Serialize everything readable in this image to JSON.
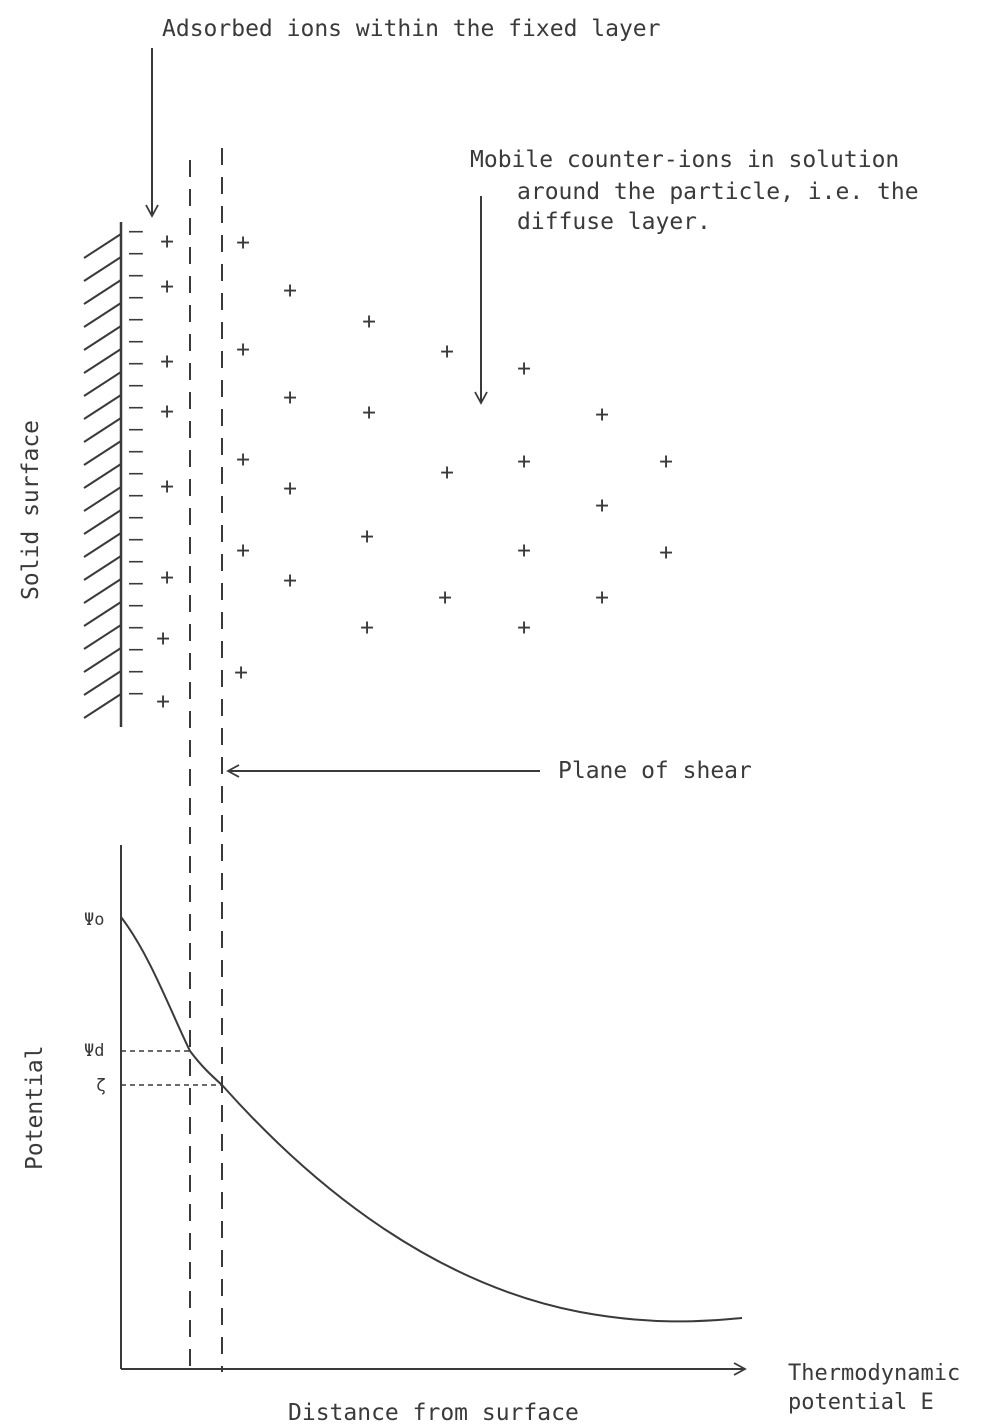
{
  "labels": {
    "adsorbed": "Adsorbed ions within the fixed layer",
    "mobile_1": "Mobile counter-ions in solution",
    "mobile_2": "around the particle, i.e. the",
    "mobile_3": "diffuse layer.",
    "solid_surface": "Solid surface",
    "plane_of_shear": "Plane of shear",
    "y_axis": "Potential",
    "x_axis": "Distance from surface",
    "thermo_1": "Thermodynamic",
    "thermo_2": "potential E",
    "psi_o": "Ψo",
    "psi_d": "Ψd",
    "zeta": "ζ"
  },
  "ions": {
    "surface_charge_symbol": "–",
    "counter_ion_symbol": "+"
  },
  "colors": {
    "ink": "#3a3a3a",
    "background": "#ffffff"
  }
}
